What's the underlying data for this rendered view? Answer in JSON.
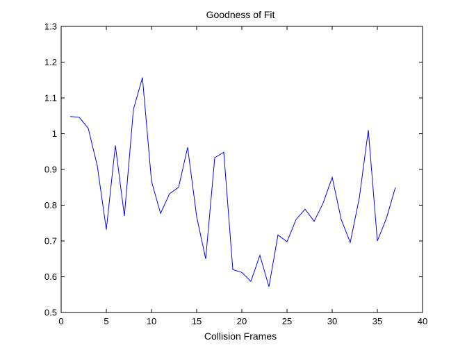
{
  "chart_data": {
    "type": "line",
    "title": "Goodness of Fit",
    "xlabel": "Collision Frames",
    "ylabel": "",
    "xlim": [
      0,
      40
    ],
    "ylim": [
      0.5,
      1.3
    ],
    "xticks": [
      0,
      5,
      10,
      15,
      20,
      25,
      30,
      35,
      40
    ],
    "yticks": [
      0.5,
      0.6,
      0.7,
      0.8,
      0.9,
      1,
      1.1,
      1.2,
      1.3
    ],
    "grid": false,
    "series": [
      {
        "color": "#0000ff",
        "x": [
          1,
          2,
          3,
          4,
          5,
          6,
          7,
          8,
          9,
          10,
          11,
          12,
          13,
          14,
          15,
          16,
          17,
          18,
          19,
          20,
          21,
          22,
          23,
          24,
          25,
          26,
          27,
          28,
          29,
          30,
          31,
          32,
          33,
          34,
          35,
          36,
          37
        ],
        "y": [
          1.048,
          1.046,
          1.015,
          0.91,
          0.732,
          0.967,
          0.77,
          1.068,
          1.157,
          0.867,
          0.777,
          0.832,
          0.85,
          0.962,
          0.768,
          0.65,
          0.933,
          0.948,
          0.62,
          0.612,
          0.587,
          0.66,
          0.572,
          0.717,
          0.698,
          0.76,
          0.789,
          0.755,
          0.806,
          0.878,
          0.76,
          0.696,
          0.82,
          1.01,
          0.7,
          0.763,
          0.85
        ]
      }
    ]
  }
}
